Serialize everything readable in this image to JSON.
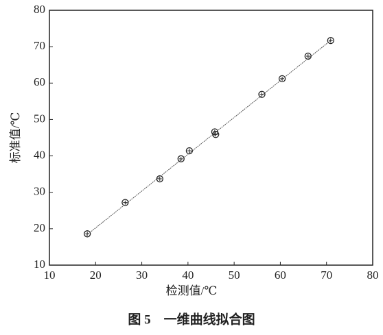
{
  "chart_data": {
    "type": "scatter",
    "title": "图 5　一维曲线拟合图",
    "xlabel": "检测值/℃",
    "ylabel": "标准值/℃",
    "xlim": [
      10,
      80
    ],
    "xticks": [
      10,
      20,
      30,
      40,
      50,
      60,
      70,
      80
    ],
    "ylim": [
      10,
      80
    ],
    "yticks": [
      10,
      20,
      30,
      40,
      50,
      60,
      70,
      80
    ],
    "series": [
      {
        "color": "#222222",
        "marker": "circle",
        "x": [
          18.2,
          26.4,
          33.9,
          38.5,
          40.3,
          45.8,
          46.0,
          56.0,
          60.4,
          66.0,
          70.9
        ],
        "values": [
          18.6,
          27.2,
          33.7,
          39.2,
          41.4,
          46.6,
          45.9,
          56.9,
          61.2,
          67.4,
          71.7
        ]
      },
      {
        "color": "#555555",
        "marker": "line",
        "x": [
          18.0,
          71.0
        ],
        "values": [
          18.2,
          71.8
        ]
      }
    ]
  }
}
